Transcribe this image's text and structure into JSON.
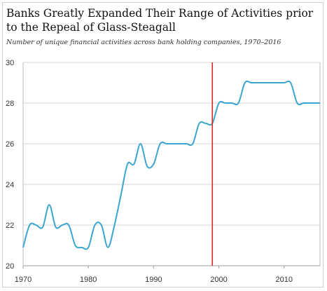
{
  "chart_data": {
    "type": "line",
    "title": "Banks Greatly Expanded Their Range of Activities prior to the Repeal of Glass-Steagall",
    "subtitle": "Number of unique financial activities across bank holding companies, 1970–2016",
    "xlabel": "",
    "ylabel": "",
    "xlim": [
      1970,
      2015.5
    ],
    "ylim": [
      20,
      30
    ],
    "x_ticks": [
      "1970",
      "1980",
      "1990",
      "2000",
      "2010"
    ],
    "y_ticks": [
      "20",
      "22",
      "24",
      "26",
      "28",
      "30"
    ],
    "grid": "horizontal",
    "legend": "none",
    "line_color": "#3aa6cf",
    "marker_color": "#e02828",
    "vertical_marker_x": 1999,
    "series": [
      {
        "x": [
          1970,
          1971,
          1972,
          1973,
          1974,
          1975,
          1976,
          1977,
          1978,
          1979,
          1980,
          1981,
          1982,
          1983,
          1984,
          1985,
          1986,
          1987,
          1988,
          1989,
          1990,
          1991,
          1992,
          1993,
          1994,
          1995,
          1996,
          1997,
          1998,
          1999,
          2000,
          2001,
          2002,
          2003,
          2004,
          2005,
          2006,
          2007,
          2008,
          2009,
          2010,
          2011,
          2012,
          2013,
          2014,
          2015,
          2015.5
        ],
        "values": [
          20.9,
          22.0,
          22.0,
          21.9,
          23.0,
          21.9,
          22.0,
          22.0,
          21.0,
          20.9,
          20.9,
          22.0,
          22.0,
          20.9,
          22.0,
          23.5,
          25.0,
          25.0,
          26.0,
          24.9,
          25.0,
          26.0,
          26.0,
          26.0,
          26.0,
          26.0,
          26.0,
          27.0,
          27.0,
          27.0,
          28.0,
          28.0,
          28.0,
          28.0,
          29.0,
          29.0,
          29.0,
          29.0,
          29.0,
          29.0,
          29.0,
          29.0,
          28.0,
          28.0,
          28.0,
          28.0,
          28.0
        ]
      }
    ]
  }
}
